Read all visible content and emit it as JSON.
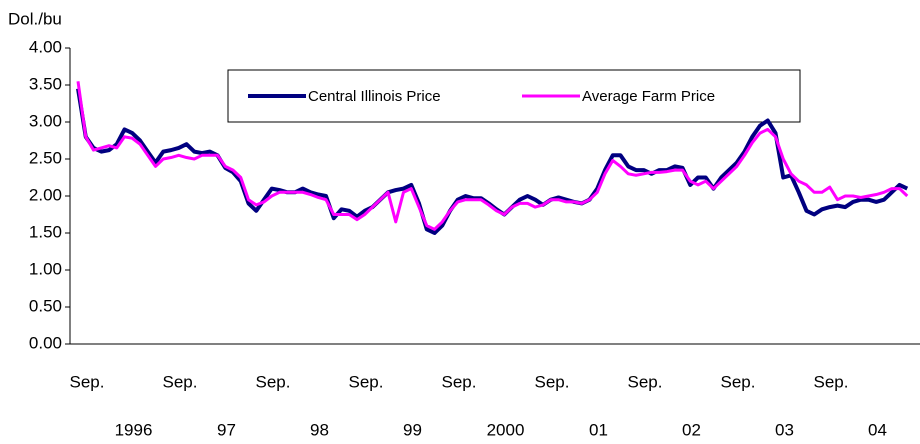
{
  "chart_data": {
    "type": "line",
    "y_axis_label": "Dol./bu",
    "ylim": [
      0,
      4
    ],
    "yticks": [
      {
        "value": 0,
        "label": "0.00"
      },
      {
        "value": 0.5,
        "label": "0.50"
      },
      {
        "value": 1,
        "label": "1.00"
      },
      {
        "value": 1.5,
        "label": "1.50"
      },
      {
        "value": 2,
        "label": "2.00"
      },
      {
        "value": 2.5,
        "label": "2.50"
      },
      {
        "value": 3,
        "label": "3.00"
      },
      {
        "value": 3.5,
        "label": "3.50"
      },
      {
        "value": 4,
        "label": "4.00"
      }
    ],
    "categories": [
      "Sep.",
      null,
      null,
      null,
      null,
      null,
      null,
      null,
      null,
      null,
      null,
      null,
      "Sep.",
      null,
      null,
      null,
      null,
      null,
      null,
      null,
      null,
      null,
      null,
      null,
      "Sep.",
      null,
      null,
      null,
      null,
      null,
      null,
      null,
      null,
      null,
      null,
      null,
      "Sep.",
      null,
      null,
      null,
      null,
      null,
      null,
      null,
      null,
      null,
      null,
      null,
      "Sep.",
      null,
      null,
      null,
      null,
      null,
      null,
      null,
      null,
      null,
      null,
      null,
      "Sep.",
      null,
      null,
      null,
      null,
      null,
      null,
      null,
      null,
      null,
      null,
      null,
      "Sep.",
      null,
      null,
      null,
      null,
      null,
      null,
      null,
      null,
      null,
      null,
      null,
      "Sep.",
      null,
      null,
      null,
      null,
      null,
      null,
      null,
      null,
      null,
      null,
      null,
      "Sep.",
      null,
      null,
      null,
      null,
      null,
      null,
      null,
      null,
      null,
      null,
      null
    ],
    "year_labels": [
      "1996",
      "97",
      "98",
      "99",
      "2000",
      "01",
      "02",
      "03",
      "04"
    ],
    "legend": "top-center",
    "series": [
      {
        "name": "Central Illinois Price",
        "color": "#000080",
        "width": 4,
        "values": [
          3.45,
          2.8,
          2.65,
          2.6,
          2.62,
          2.7,
          2.9,
          2.85,
          2.75,
          2.6,
          2.45,
          2.6,
          2.62,
          2.65,
          2.7,
          2.6,
          2.58,
          2.6,
          2.55,
          2.38,
          2.32,
          2.2,
          1.9,
          1.8,
          1.95,
          2.1,
          2.08,
          2.05,
          2.05,
          2.1,
          2.05,
          2.02,
          2.0,
          1.7,
          1.82,
          1.8,
          1.72,
          1.8,
          1.85,
          1.95,
          2.05,
          2.08,
          2.1,
          2.15,
          1.9,
          1.55,
          1.5,
          1.6,
          1.8,
          1.95,
          2.0,
          1.97,
          1.97,
          1.9,
          1.82,
          1.75,
          1.85,
          1.95,
          2.0,
          1.95,
          1.88,
          1.95,
          1.98,
          1.95,
          1.92,
          1.9,
          1.95,
          2.1,
          2.35,
          2.55,
          2.55,
          2.4,
          2.35,
          2.35,
          2.3,
          2.35,
          2.35,
          2.4,
          2.38,
          2.15,
          2.25,
          2.25,
          2.1,
          2.25,
          2.35,
          2.45,
          2.6,
          2.8,
          2.95,
          3.02,
          2.85,
          2.25,
          2.28,
          2.05,
          1.8,
          1.75,
          1.82,
          1.85,
          1.87,
          1.85,
          1.92,
          1.95,
          1.95,
          1.92,
          1.95,
          2.05,
          2.15,
          2.1
        ]
      },
      {
        "name": "Average Farm Price",
        "color": "#ff00ff",
        "width": 3,
        "values": [
          3.55,
          2.8,
          2.62,
          2.65,
          2.68,
          2.65,
          2.8,
          2.78,
          2.7,
          2.55,
          2.4,
          2.5,
          2.52,
          2.55,
          2.52,
          2.5,
          2.55,
          2.55,
          2.55,
          2.4,
          2.35,
          2.25,
          1.95,
          1.88,
          1.92,
          2.0,
          2.05,
          2.05,
          2.05,
          2.05,
          2.02,
          1.98,
          1.95,
          1.75,
          1.75,
          1.75,
          1.68,
          1.75,
          1.85,
          1.95,
          2.05,
          1.65,
          2.05,
          2.1,
          1.85,
          1.6,
          1.55,
          1.65,
          1.8,
          1.92,
          1.95,
          1.95,
          1.95,
          1.88,
          1.8,
          1.75,
          1.85,
          1.9,
          1.9,
          1.85,
          1.88,
          1.95,
          1.95,
          1.92,
          1.92,
          1.9,
          1.95,
          2.05,
          2.3,
          2.48,
          2.4,
          2.3,
          2.28,
          2.3,
          2.32,
          2.32,
          2.33,
          2.35,
          2.35,
          2.2,
          2.15,
          2.2,
          2.1,
          2.2,
          2.3,
          2.4,
          2.55,
          2.72,
          2.85,
          2.9,
          2.8,
          2.5,
          2.3,
          2.2,
          2.15,
          2.05,
          2.05,
          2.12,
          1.95,
          2.0,
          2.0,
          1.98,
          2.0,
          2.02,
          2.05,
          2.1,
          2.1,
          2.0
        ]
      }
    ]
  }
}
